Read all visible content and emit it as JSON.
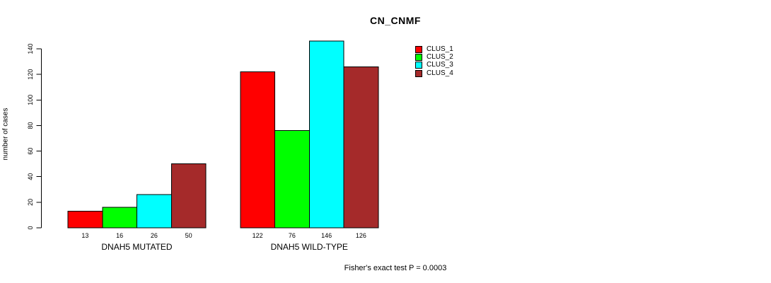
{
  "chart_data": {
    "type": "bar",
    "title": "CN_CNMF",
    "ylabel": "number of cases",
    "xlabel": "",
    "annotation": "Fisher's exact test P = 0.0003",
    "categories": [
      "DNAH5 MUTATED",
      "DNAH5 WILD-TYPE"
    ],
    "series": [
      {
        "name": "CLUS_1",
        "color": "#ff0000",
        "values": [
          13,
          122
        ]
      },
      {
        "name": "CLUS_2",
        "color": "#00ff00",
        "values": [
          16,
          76
        ]
      },
      {
        "name": "CLUS_3",
        "color": "#00ffff",
        "values": [
          26,
          146
        ]
      },
      {
        "name": "CLUS_4",
        "color": "#a52a2a",
        "values": [
          50,
          126
        ]
      }
    ],
    "values_shown_under_bars": true,
    "yticks": [
      0,
      20,
      40,
      60,
      80,
      100,
      120,
      140
    ],
    "ylim": [
      0,
      140
    ],
    "grid": false,
    "legend": {
      "entries": [
        "CLUS_1",
        "CLUS_2",
        "CLUS_3",
        "CLUS_4"
      ],
      "colors": [
        "#ff0000",
        "#00ff00",
        "#00ffff",
        "#a52a2a"
      ],
      "position": "upper-middle-right"
    },
    "background": "#ffffff",
    "axis_color": "#000000"
  }
}
